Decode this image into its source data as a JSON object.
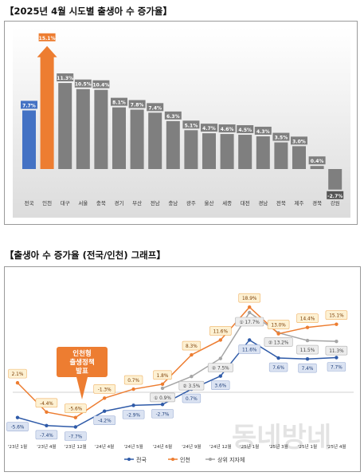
{
  "heading1": "【2025년 4월 시도별 출생아 수 증가율】",
  "heading2": "【출생아 수 증가율 (전국/인천) 그래프】",
  "watermark": "동네방네",
  "callout": [
    "인천형",
    "출생정책",
    "발표"
  ],
  "colors": {
    "national_bar": "#4472c4",
    "incheon_bar": "#ed7d31",
    "other_bar": "#7f7f7f",
    "national_line": "#2e5aa8",
    "incheon_line": "#ed7d31",
    "upper_line": "#a5a5a5",
    "callout": "#ed7d31"
  },
  "chart_data": [
    {
      "type": "bar",
      "categories": [
        "전국",
        "인천",
        "대구",
        "서울",
        "충북",
        "경기",
        "부산",
        "전남",
        "충남",
        "광주",
        "울산",
        "세종",
        "대전",
        "경남",
        "전북",
        "제주",
        "경북",
        "강원"
      ],
      "values": [
        7.7,
        15.1,
        11.3,
        10.5,
        10.4,
        8.1,
        7.8,
        7.4,
        6.3,
        5.1,
        4.7,
        4.6,
        4.5,
        4.3,
        3.5,
        3.0,
        0.4,
        -2.7
      ],
      "labels": [
        "7.7%",
        "15.1%",
        "11.3%",
        "10.5%",
        "10.4%",
        "8.1%",
        "7.8%",
        "7.4%",
        "6.3%",
        "5.1%",
        "4.7%",
        "4.6%",
        "4.5%",
        "4.3%",
        "3.5%",
        "3.0%",
        "0.4%",
        "-2.7%"
      ],
      "ylim": [
        -3,
        16
      ],
      "grid": false,
      "highlight": {
        "incheon_arrow": true
      }
    },
    {
      "type": "line",
      "x": [
        "'23년 1월",
        "'23년 4월",
        "'23년 12월",
        "'24년 4월",
        "'24년 5월",
        "'24년 6월",
        "'24년 9월",
        "'24년 12월",
        "'25년 1월",
        "'25년 3월",
        "'25년 1월",
        "'25년 4월"
      ],
      "xlabels": [
        "'23년 1월",
        "'23년 4월",
        "'23년 12월",
        "'24년 4월",
        "'24년 5월",
        "'24년 6월",
        "'24년 9월",
        "'24년 12월",
        "'25년 1월",
        "'25년 3월",
        "'25년 1월",
        "'25년 4월"
      ],
      "series": [
        {
          "name": "전국",
          "values": [
            -5.6,
            -7.4,
            -7.7,
            -4.2,
            -2.9,
            -2.7,
            0.7,
            3.6,
            11.6,
            7.6,
            7.4,
            7.7
          ],
          "labels": [
            "-5.6%",
            "-7.4%",
            "-7.7%",
            "-4.2%",
            "-2.9%",
            "-2.7%",
            "0.7%",
            "3.6%",
            "11.6%",
            "7.6%",
            "7.4%",
            "7.7%"
          ]
        },
        {
          "name": "인천",
          "values": [
            2.1,
            -4.4,
            -5.6,
            -1.3,
            0.7,
            1.8,
            8.3,
            11.6,
            18.9,
            13.0,
            14.4,
            15.1
          ],
          "labels": [
            "2.1%",
            "-4.4%",
            "-5.6%",
            "-1.3%",
            "0.7%",
            "1.8%",
            "8.3%",
            "11.6%",
            "18.9%",
            "13.0%",
            "14.4%",
            "15.1%"
          ]
        },
        {
          "name": "상위 지자체",
          "values": [
            null,
            null,
            null,
            null,
            null,
            0.9,
            3.5,
            7.5,
            17.7,
            13.2,
            11.5,
            11.3
          ],
          "labels": [
            "",
            "",
            "",
            "",
            "",
            "0.9%",
            "3.5%",
            "7.5%",
            "17.7%",
            "13.2%",
            "11.5%",
            "11.3%"
          ],
          "ranks": [
            "",
            "",
            "",
            "",
            "",
            "①",
            "②",
            "②",
            "①",
            "②",
            "",
            ""
          ]
        }
      ],
      "ylim": [
        -10,
        21
      ],
      "grid": false,
      "legend": "bottom"
    }
  ]
}
